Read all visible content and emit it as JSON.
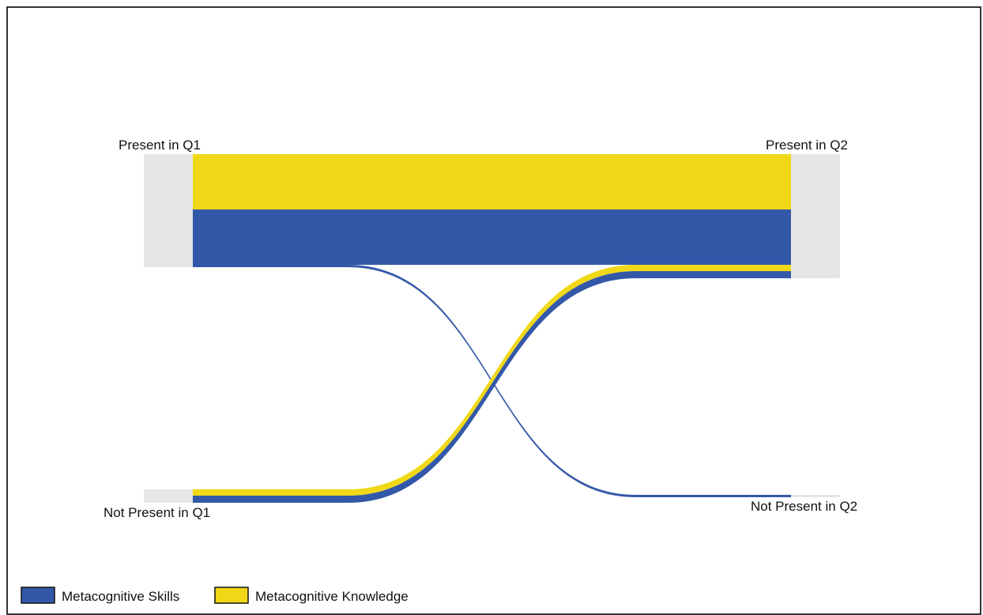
{
  "chart_data": {
    "type": "sankey",
    "nodes": {
      "present_q1": "Present in Q1",
      "not_present_q1": "Not Present in Q1",
      "present_q2": "Present in Q2",
      "not_present_q2": "Not Present in Q2"
    },
    "series": [
      {
        "name": "Metacognitive Skills",
        "color": "#3358a8"
      },
      {
        "name": "Metacognitive Knowledge",
        "color": "#f0d817"
      }
    ],
    "flows": [
      {
        "from": "present_q1",
        "to": "present_q2",
        "series": "Metacognitive Knowledge",
        "value": 14
      },
      {
        "from": "present_q1",
        "to": "present_q2",
        "series": "Metacognitive Skills",
        "value": 14
      },
      {
        "from": "present_q1",
        "to": "not_present_q2",
        "series": "Metacognitive Skills",
        "value": 0.6
      },
      {
        "from": "not_present_q1",
        "to": "present_q2",
        "series": "Metacognitive Knowledge",
        "value": 1.6
      },
      {
        "from": "not_present_q1",
        "to": "present_q2",
        "series": "Metacognitive Skills",
        "value": 1.8
      }
    ],
    "legend": {
      "position": "bottom-left",
      "items": [
        "Metacognitive Skills",
        "Metacognitive Knowledge"
      ]
    },
    "node_color": "#e6e6e6"
  }
}
